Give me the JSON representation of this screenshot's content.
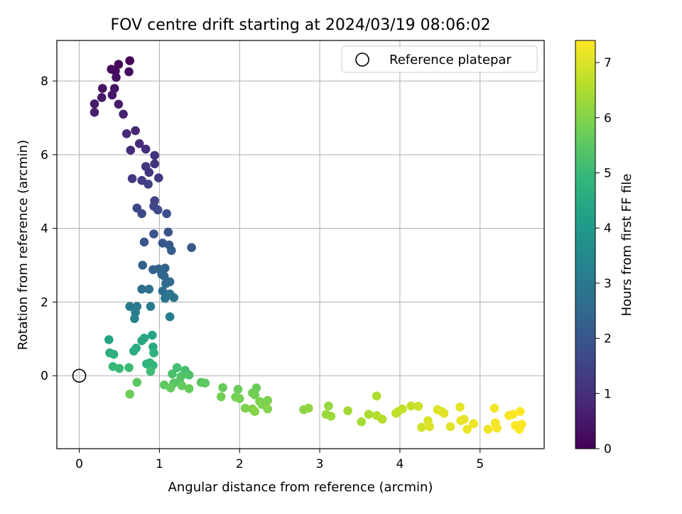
{
  "chart_data": {
    "type": "scatter",
    "title": "FOV centre drift starting at 2024/03/19 08:06:02",
    "xlabel": "Angular distance from reference (arcmin)",
    "ylabel": "Rotation from reference (arcmin)",
    "xlim": [
      -0.28,
      5.8
    ],
    "ylim": [
      -1.98,
      9.1
    ],
    "xticks": [
      0,
      1,
      2,
      3,
      4,
      5
    ],
    "yticks": [
      0,
      2,
      4,
      6,
      8
    ],
    "grid": true,
    "legend": {
      "position": "top-right",
      "entries": [
        {
          "label": "Reference platepar",
          "marker": "open-circle"
        }
      ]
    },
    "reference_point": {
      "x": 0,
      "y": 0
    },
    "colorbar": {
      "label": "Hours from first FF file",
      "range": [
        0,
        7.4
      ],
      "ticks": [
        0,
        1,
        2,
        3,
        4,
        5,
        6,
        7
      ],
      "colormap": "viridis",
      "colormap_stops": [
        "#440154",
        "#482878",
        "#3e4989",
        "#31688e",
        "#26828e",
        "#1f9e89",
        "#35b779",
        "#6ece58",
        "#b5de2b",
        "#fde725"
      ]
    },
    "points": [
      {
        "x": 0.63,
        "y": 8.55,
        "t": 0.05
      },
      {
        "x": 0.49,
        "y": 8.45,
        "t": 0.1
      },
      {
        "x": 0.4,
        "y": 8.32,
        "t": 0.15
      },
      {
        "x": 0.45,
        "y": 8.27,
        "t": 0.2
      },
      {
        "x": 0.62,
        "y": 8.25,
        "t": 0.25
      },
      {
        "x": 0.46,
        "y": 8.1,
        "t": 0.3
      },
      {
        "x": 0.29,
        "y": 7.8,
        "t": 0.35
      },
      {
        "x": 0.44,
        "y": 7.8,
        "t": 0.4
      },
      {
        "x": 0.41,
        "y": 7.62,
        "t": 0.45
      },
      {
        "x": 0.28,
        "y": 7.55,
        "t": 0.5
      },
      {
        "x": 0.19,
        "y": 7.38,
        "t": 0.55
      },
      {
        "x": 0.49,
        "y": 7.37,
        "t": 0.6
      },
      {
        "x": 0.19,
        "y": 7.15,
        "t": 0.65
      },
      {
        "x": 0.55,
        "y": 7.1,
        "t": 0.7
      },
      {
        "x": 0.7,
        "y": 6.65,
        "t": 0.8
      },
      {
        "x": 0.59,
        "y": 6.57,
        "t": 0.85
      },
      {
        "x": 0.75,
        "y": 6.3,
        "t": 0.9
      },
      {
        "x": 0.64,
        "y": 6.12,
        "t": 0.95
      },
      {
        "x": 0.83,
        "y": 6.15,
        "t": 1.0
      },
      {
        "x": 0.94,
        "y": 5.98,
        "t": 1.05
      },
      {
        "x": 0.94,
        "y": 5.75,
        "t": 1.1
      },
      {
        "x": 0.83,
        "y": 5.68,
        "t": 1.15
      },
      {
        "x": 0.87,
        "y": 5.52,
        "t": 1.2
      },
      {
        "x": 0.66,
        "y": 5.35,
        "t": 1.25
      },
      {
        "x": 0.99,
        "y": 5.37,
        "t": 1.3
      },
      {
        "x": 0.78,
        "y": 5.3,
        "t": 1.35
      },
      {
        "x": 0.86,
        "y": 5.2,
        "t": 1.4
      },
      {
        "x": 0.94,
        "y": 4.75,
        "t": 1.5
      },
      {
        "x": 0.93,
        "y": 4.6,
        "t": 1.55
      },
      {
        "x": 0.72,
        "y": 4.55,
        "t": 1.6
      },
      {
        "x": 0.98,
        "y": 4.5,
        "t": 1.65
      },
      {
        "x": 0.78,
        "y": 4.4,
        "t": 1.7
      },
      {
        "x": 1.09,
        "y": 4.4,
        "t": 1.75
      },
      {
        "x": 1.11,
        "y": 3.9,
        "t": 1.85
      },
      {
        "x": 0.93,
        "y": 3.85,
        "t": 1.9
      },
      {
        "x": 0.81,
        "y": 3.63,
        "t": 1.95
      },
      {
        "x": 1.04,
        "y": 3.6,
        "t": 2.0
      },
      {
        "x": 1.12,
        "y": 3.55,
        "t": 2.05
      },
      {
        "x": 1.4,
        "y": 3.48,
        "t": 2.1
      },
      {
        "x": 1.15,
        "y": 3.4,
        "t": 2.15
      },
      {
        "x": 0.79,
        "y": 3.0,
        "t": 2.25
      },
      {
        "x": 0.92,
        "y": 2.88,
        "t": 2.3
      },
      {
        "x": 0.99,
        "y": 2.9,
        "t": 2.35
      },
      {
        "x": 1.07,
        "y": 2.92,
        "t": 2.4
      },
      {
        "x": 1.03,
        "y": 2.75,
        "t": 2.45
      },
      {
        "x": 1.06,
        "y": 2.7,
        "t": 2.5
      },
      {
        "x": 1.13,
        "y": 2.55,
        "t": 2.55
      },
      {
        "x": 1.08,
        "y": 2.5,
        "t": 2.6
      },
      {
        "x": 0.78,
        "y": 2.35,
        "t": 2.65
      },
      {
        "x": 0.87,
        "y": 2.35,
        "t": 2.7
      },
      {
        "x": 1.04,
        "y": 2.3,
        "t": 2.75
      },
      {
        "x": 1.13,
        "y": 2.22,
        "t": 2.8
      },
      {
        "x": 1.07,
        "y": 2.1,
        "t": 2.85
      },
      {
        "x": 1.18,
        "y": 2.12,
        "t": 2.9
      },
      {
        "x": 0.63,
        "y": 1.88,
        "t": 3.0
      },
      {
        "x": 0.72,
        "y": 1.88,
        "t": 3.05
      },
      {
        "x": 0.89,
        "y": 1.88,
        "t": 3.1
      },
      {
        "x": 0.7,
        "y": 1.72,
        "t": 3.15
      },
      {
        "x": 1.13,
        "y": 1.6,
        "t": 3.2
      },
      {
        "x": 0.69,
        "y": 1.55,
        "t": 3.25
      },
      {
        "x": 0.37,
        "y": 0.98,
        "t": 4.3
      },
      {
        "x": 0.91,
        "y": 1.1,
        "t": 4.35
      },
      {
        "x": 0.81,
        "y": 1.02,
        "t": 4.4
      },
      {
        "x": 0.78,
        "y": 0.95,
        "t": 4.45
      },
      {
        "x": 0.92,
        "y": 0.78,
        "t": 4.5
      },
      {
        "x": 0.71,
        "y": 0.75,
        "t": 4.55
      },
      {
        "x": 0.68,
        "y": 0.67,
        "t": 4.6
      },
      {
        "x": 0.38,
        "y": 0.62,
        "t": 4.65
      },
      {
        "x": 0.43,
        "y": 0.58,
        "t": 4.7
      },
      {
        "x": 0.93,
        "y": 0.62,
        "t": 4.75
      },
      {
        "x": 0.84,
        "y": 0.32,
        "t": 4.8
      },
      {
        "x": 0.88,
        "y": 0.35,
        "t": 4.85
      },
      {
        "x": 0.92,
        "y": 0.28,
        "t": 4.9
      },
      {
        "x": 0.42,
        "y": 0.25,
        "t": 4.95
      },
      {
        "x": 0.5,
        "y": 0.2,
        "t": 5.0
      },
      {
        "x": 0.62,
        "y": 0.22,
        "t": 5.05
      },
      {
        "x": 0.89,
        "y": 0.12,
        "t": 5.1
      },
      {
        "x": 1.22,
        "y": 0.22,
        "t": 5.15
      },
      {
        "x": 1.32,
        "y": 0.15,
        "t": 5.2
      },
      {
        "x": 1.16,
        "y": 0.05,
        "t": 5.25
      },
      {
        "x": 1.37,
        "y": 0.02,
        "t": 5.3
      },
      {
        "x": 1.27,
        "y": -0.02,
        "t": 5.35
      },
      {
        "x": 1.25,
        "y": -0.15,
        "t": 5.4
      },
      {
        "x": 1.18,
        "y": -0.2,
        "t": 5.45
      },
      {
        "x": 0.72,
        "y": -0.18,
        "t": 5.5
      },
      {
        "x": 1.52,
        "y": -0.18,
        "t": 5.5
      },
      {
        "x": 1.57,
        "y": -0.2,
        "t": 5.55
      },
      {
        "x": 1.06,
        "y": -0.25,
        "t": 5.55
      },
      {
        "x": 1.28,
        "y": -0.27,
        "t": 5.6
      },
      {
        "x": 1.14,
        "y": -0.33,
        "t": 5.6
      },
      {
        "x": 1.37,
        "y": -0.35,
        "t": 5.65
      },
      {
        "x": 1.79,
        "y": -0.32,
        "t": 5.65
      },
      {
        "x": 1.98,
        "y": -0.37,
        "t": 5.7
      },
      {
        "x": 2.21,
        "y": -0.33,
        "t": 5.7
      },
      {
        "x": 0.63,
        "y": -0.5,
        "t": 5.75
      },
      {
        "x": 2.16,
        "y": -0.47,
        "t": 5.75
      },
      {
        "x": 2.19,
        "y": -0.52,
        "t": 5.8
      },
      {
        "x": 1.77,
        "y": -0.57,
        "t": 5.8
      },
      {
        "x": 1.95,
        "y": -0.58,
        "t": 5.85
      },
      {
        "x": 2.0,
        "y": -0.62,
        "t": 5.85
      },
      {
        "x": 2.25,
        "y": -0.7,
        "t": 5.9
      },
      {
        "x": 2.35,
        "y": -0.67,
        "t": 5.9
      },
      {
        "x": 2.28,
        "y": -0.78,
        "t": 5.95
      },
      {
        "x": 2.07,
        "y": -0.88,
        "t": 5.95
      },
      {
        "x": 2.16,
        "y": -0.9,
        "t": 6.0
      },
      {
        "x": 2.35,
        "y": -0.9,
        "t": 6.0
      },
      {
        "x": 2.19,
        "y": -0.97,
        "t": 6.05
      },
      {
        "x": 2.8,
        "y": -0.92,
        "t": 6.1
      },
      {
        "x": 2.86,
        "y": -0.88,
        "t": 6.15
      },
      {
        "x": 3.11,
        "y": -0.82,
        "t": 6.2
      },
      {
        "x": 3.08,
        "y": -1.05,
        "t": 6.25
      },
      {
        "x": 3.14,
        "y": -1.1,
        "t": 6.3
      },
      {
        "x": 3.35,
        "y": -0.95,
        "t": 6.35
      },
      {
        "x": 3.52,
        "y": -1.25,
        "t": 6.4
      },
      {
        "x": 3.61,
        "y": -1.05,
        "t": 6.45
      },
      {
        "x": 3.71,
        "y": -0.55,
        "t": 6.5
      },
      {
        "x": 3.71,
        "y": -1.08,
        "t": 6.55
      },
      {
        "x": 3.78,
        "y": -1.18,
        "t": 6.6
      },
      {
        "x": 3.95,
        "y": -1.02,
        "t": 6.65
      },
      {
        "x": 3.98,
        "y": -0.97,
        "t": 6.7
      },
      {
        "x": 4.03,
        "y": -0.9,
        "t": 6.75
      },
      {
        "x": 4.14,
        "y": -0.82,
        "t": 6.8
      },
      {
        "x": 4.23,
        "y": -0.83,
        "t": 6.85
      },
      {
        "x": 4.27,
        "y": -1.4,
        "t": 6.9
      },
      {
        "x": 4.35,
        "y": -1.22,
        "t": 6.95
      },
      {
        "x": 4.37,
        "y": -1.38,
        "t": 7.0
      },
      {
        "x": 4.47,
        "y": -0.92,
        "t": 7.02
      },
      {
        "x": 4.52,
        "y": -0.97,
        "t": 7.05
      },
      {
        "x": 4.55,
        "y": -1.02,
        "t": 7.07
      },
      {
        "x": 4.63,
        "y": -1.38,
        "t": 7.1
      },
      {
        "x": 4.75,
        "y": -0.85,
        "t": 7.12
      },
      {
        "x": 4.76,
        "y": -1.22,
        "t": 7.15
      },
      {
        "x": 4.8,
        "y": -1.18,
        "t": 7.17
      },
      {
        "x": 4.84,
        "y": -1.45,
        "t": 7.2
      },
      {
        "x": 4.92,
        "y": -1.3,
        "t": 7.22
      },
      {
        "x": 5.1,
        "y": -1.45,
        "t": 7.25
      },
      {
        "x": 5.18,
        "y": -0.88,
        "t": 7.27
      },
      {
        "x": 5.19,
        "y": -1.28,
        "t": 7.3
      },
      {
        "x": 5.21,
        "y": -1.42,
        "t": 7.32
      },
      {
        "x": 5.36,
        "y": -1.08,
        "t": 7.34
      },
      {
        "x": 5.41,
        "y": -1.05,
        "t": 7.36
      },
      {
        "x": 5.44,
        "y": -1.35,
        "t": 7.38
      },
      {
        "x": 5.5,
        "y": -0.97,
        "t": 7.4
      },
      {
        "x": 5.52,
        "y": -1.32,
        "t": 7.4
      },
      {
        "x": 5.49,
        "y": -1.45,
        "t": 7.4
      }
    ]
  }
}
